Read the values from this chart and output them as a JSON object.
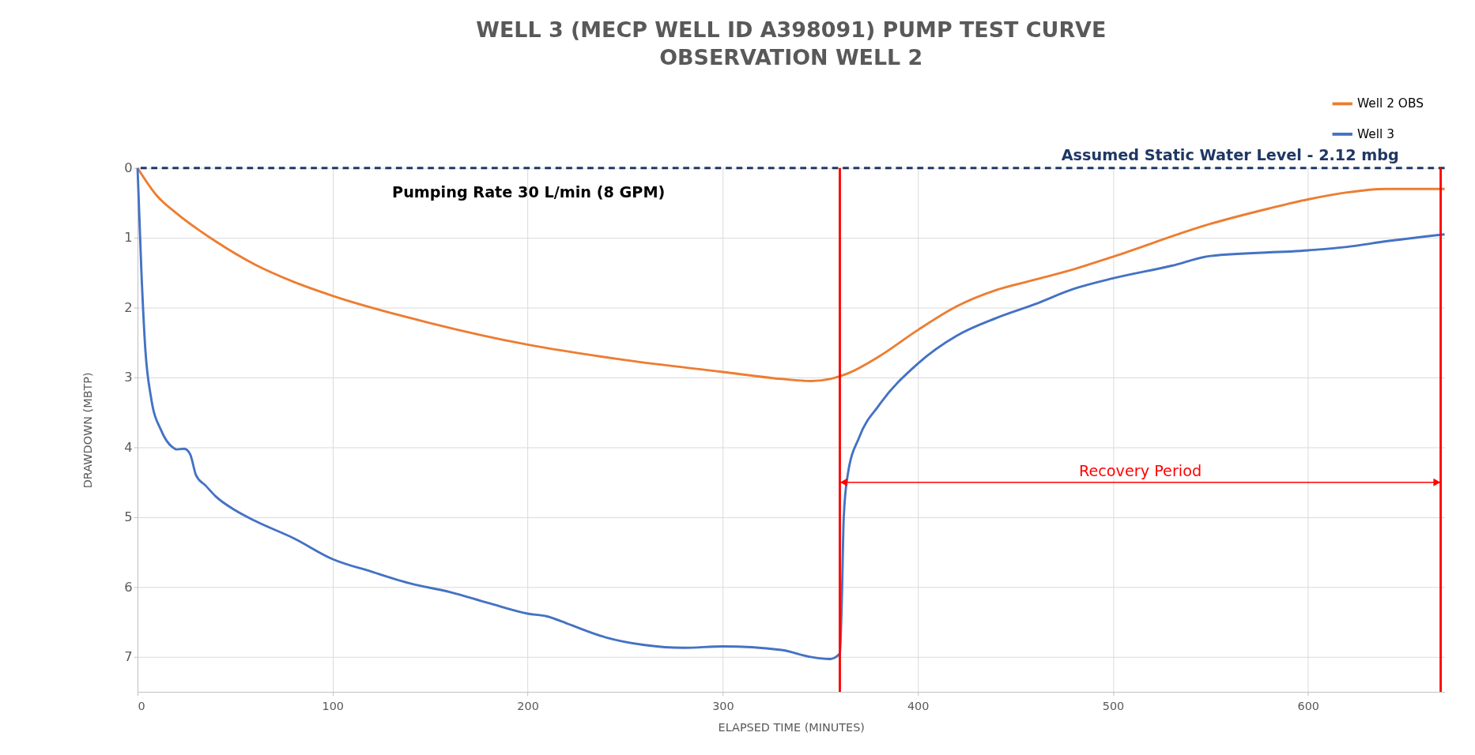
{
  "chart_data": {
    "type": "line",
    "title": "WELL 3 (MECP WELL ID A398091) PUMP TEST CURVE",
    "subtitle": "OBSERVATION WELL 2",
    "xlabel": "ELAPSED TIME (MINUTES)",
    "ylabel": "DRAWDOWN  (MBTP)",
    "xlim": [
      0,
      670
    ],
    "xticks": [
      0,
      100,
      200,
      300,
      400,
      500,
      600
    ],
    "ylim": [
      7.5,
      0
    ],
    "yticks": [
      0,
      1,
      2,
      3,
      4,
      5,
      6,
      7
    ],
    "grid": true,
    "legend": "top right",
    "line_style": "solid",
    "marker": "none",
    "series": [
      {
        "name": "Well 2 OBS",
        "color": "#ed7d31",
        "x": [
          0,
          10,
          20,
          40,
          60,
          80,
          100,
          150,
          200,
          250,
          300,
          330,
          345,
          355,
          365,
          380,
          400,
          420,
          440,
          460,
          480,
          500,
          550,
          580,
          600,
          620,
          640,
          670
        ],
        "values": [
          0,
          0.4,
          0.65,
          1.05,
          1.38,
          1.63,
          1.83,
          2.22,
          2.53,
          2.75,
          2.92,
          3.02,
          3.05,
          3.02,
          2.93,
          2.7,
          2.32,
          1.98,
          1.75,
          1.6,
          1.45,
          1.27,
          0.8,
          0.58,
          0.45,
          0.35,
          0.3,
          0.3
        ]
      },
      {
        "name": "Well 3",
        "color": "#4472c4",
        "x": [
          0,
          2,
          4,
          7,
          12,
          18,
          20,
          24,
          27,
          30,
          35,
          40,
          50,
          60,
          80,
          100,
          120,
          140,
          160,
          180,
          200,
          210,
          220,
          240,
          260,
          280,
          300,
          330,
          345,
          355,
          360,
          361,
          362,
          364,
          370,
          380,
          400,
          420,
          440,
          460,
          480,
          500,
          530,
          550,
          600,
          620,
          640,
          670
        ],
        "values": [
          0,
          1.5,
          2.6,
          3.3,
          3.75,
          4.0,
          4.03,
          4.02,
          4.1,
          4.4,
          4.55,
          4.7,
          4.9,
          5.05,
          5.3,
          5.6,
          5.78,
          5.95,
          6.07,
          6.23,
          6.38,
          6.42,
          6.52,
          6.72,
          6.83,
          6.87,
          6.85,
          6.9,
          7.0,
          7.03,
          6.95,
          6.2,
          5.0,
          4.4,
          3.85,
          3.4,
          2.8,
          2.4,
          2.15,
          1.95,
          1.73,
          1.58,
          1.4,
          1.26,
          1.18,
          1.13,
          1.05,
          0.95
        ]
      }
    ],
    "ref_lines": [
      {
        "axis": "y",
        "value": 0,
        "label": "Assumed Static Water Level  - 2.12 mbg",
        "color": "#1f3864",
        "line_style": "dashed"
      },
      {
        "axis": "x",
        "value": 360,
        "label": null,
        "color": "#ff0000",
        "line_style": "solid"
      },
      {
        "axis": "x",
        "value": 668,
        "label": null,
        "color": "#ff0000",
        "line_style": "solid"
      }
    ],
    "annotations": [
      "Pumping Rate 30 L/min (8 GPM)",
      "Recovery Period"
    ]
  }
}
